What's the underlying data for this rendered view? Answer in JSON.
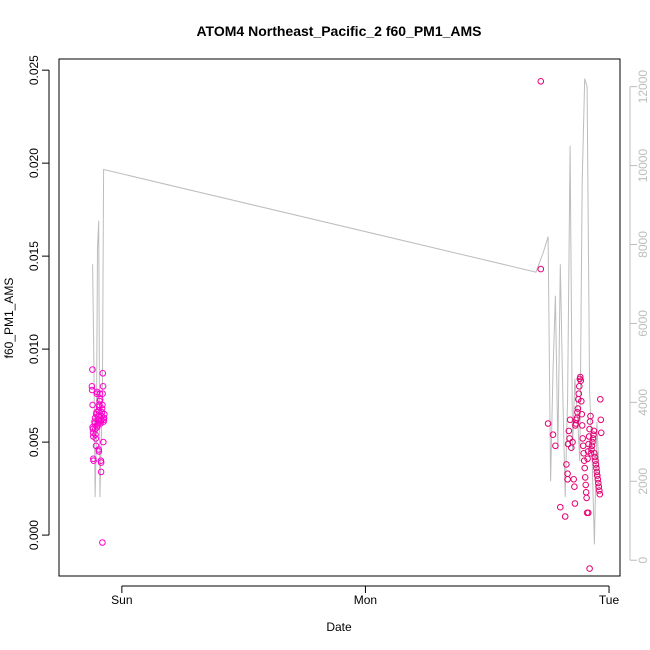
{
  "chart_data": {
    "type": "scatter",
    "title": "ATOM4 Northeast_Pacific_2 f60_PM1_AMS",
    "xlabel": "Date",
    "ylabel": "f60_PM1_AMS",
    "x_ticks": [
      {
        "label": "Sun",
        "value": 0
      },
      {
        "label": "Mon",
        "value": 1
      },
      {
        "label": "Tue",
        "value": 2
      }
    ],
    "xlim": [
      -0.258,
      2.045
    ],
    "ylim": [
      -0.0022,
      0.0256
    ],
    "y_ticks": [
      0.0,
      0.005,
      0.01,
      0.015,
      0.02,
      0.025
    ],
    "y_tick_labels": [
      "0.000",
      "0.005",
      "0.010",
      "0.015",
      "0.020",
      "0.025"
    ],
    "y2_ticks": [
      0,
      2000,
      4000,
      6000,
      8000,
      10000,
      12000
    ],
    "y2_tick_labels": [
      "0",
      "2000",
      "4000",
      "6000",
      "8000",
      "10000",
      "12000"
    ],
    "y2lim": [
      -400,
      12700
    ],
    "grid": false,
    "colors": {
      "points": "#ff00cc",
      "points_alt": "#e60073",
      "line": "#bdbdbd"
    },
    "series": [
      {
        "role": "f60_PM1_AMS points",
        "points": [
          [
            -0.123,
            0.008
          ],
          [
            -0.122,
            0.0078
          ],
          [
            -0.121,
            0.0089
          ],
          [
            -0.12,
            0.007
          ],
          [
            -0.12,
            0.0058
          ],
          [
            -0.119,
            0.0057
          ],
          [
            -0.118,
            0.0055
          ],
          [
            -0.117,
            0.0053
          ],
          [
            -0.117,
            0.0041
          ],
          [
            -0.116,
            0.004
          ],
          [
            -0.112,
            0.0061
          ],
          [
            -0.111,
            0.006
          ],
          [
            -0.11,
            0.0063
          ],
          [
            -0.109,
            0.0057
          ],
          [
            -0.108,
            0.0054
          ],
          [
            -0.107,
            0.0052
          ],
          [
            -0.106,
            0.0048
          ],
          [
            -0.105,
            0.0065
          ],
          [
            -0.104,
            0.0066
          ],
          [
            -0.103,
            0.0076
          ],
          [
            -0.102,
            0.0077
          ],
          [
            -0.101,
            0.0058
          ],
          [
            -0.1,
            0.0059
          ],
          [
            -0.099,
            0.006
          ],
          [
            -0.098,
            0.0062
          ],
          [
            -0.097,
            0.0064
          ],
          [
            -0.096,
            0.0067
          ],
          [
            -0.095,
            0.0046
          ],
          [
            -0.094,
            0.0045
          ],
          [
            -0.093,
            0.0069
          ],
          [
            -0.092,
            0.007
          ],
          [
            -0.091,
            0.0072
          ],
          [
            -0.09,
            0.0076
          ],
          [
            -0.089,
            0.0073
          ],
          [
            -0.088,
            0.006
          ],
          [
            -0.087,
            0.0061
          ],
          [
            -0.086,
            0.004
          ],
          [
            -0.085,
            0.0039
          ],
          [
            -0.085,
            0.0034
          ],
          [
            -0.084,
            0.0062
          ],
          [
            -0.083,
            0.0064
          ],
          [
            -0.082,
            0.0066
          ],
          [
            -0.081,
            0.0068
          ],
          [
            -0.08,
            0.007
          ],
          [
            -0.079,
            0.0076
          ],
          [
            -0.078,
            0.0087
          ],
          [
            -0.077,
            0.008
          ],
          [
            -0.076,
            0.005
          ],
          [
            -0.075,
            0.0061
          ],
          [
            -0.074,
            0.0062
          ],
          [
            -0.073,
            0.0063
          ],
          [
            -0.072,
            0.0065
          ],
          [
            -0.08,
            -0.0004
          ],
          [
            1.72,
            0.0244
          ],
          [
            1.72,
            0.0143
          ],
          [
            1.75,
            0.006
          ],
          [
            1.77,
            0.0054
          ],
          [
            1.78,
            0.0048
          ],
          [
            1.8,
            0.0015
          ],
          [
            1.82,
            0.001
          ],
          [
            1.825,
            0.0038
          ],
          [
            1.83,
            0.0033
          ],
          [
            1.83,
            0.003
          ],
          [
            1.832,
            0.0049
          ],
          [
            1.835,
            0.0056
          ],
          [
            1.838,
            0.0052
          ],
          [
            1.84,
            0.0062
          ],
          [
            1.845,
            0.0047
          ],
          [
            1.85,
            0.005
          ],
          [
            1.855,
            0.003
          ],
          [
            1.858,
            0.0026
          ],
          [
            1.86,
            0.0017
          ],
          [
            1.862,
            0.0059
          ],
          [
            1.864,
            0.006
          ],
          [
            1.866,
            0.0062
          ],
          [
            1.868,
            0.0063
          ],
          [
            1.87,
            0.0066
          ],
          [
            1.872,
            0.0068
          ],
          [
            1.874,
            0.0073
          ],
          [
            1.876,
            0.0076
          ],
          [
            1.878,
            0.008
          ],
          [
            1.88,
            0.0084
          ],
          [
            1.882,
            0.0085
          ],
          [
            1.884,
            0.0083
          ],
          [
            1.886,
            0.0072
          ],
          [
            1.888,
            0.0065
          ],
          [
            1.89,
            0.0059
          ],
          [
            1.892,
            0.0052
          ],
          [
            1.894,
            0.0048
          ],
          [
            1.896,
            0.0044
          ],
          [
            1.898,
            0.004
          ],
          [
            1.9,
            0.0036
          ],
          [
            1.902,
            0.0031
          ],
          [
            1.904,
            0.0027
          ],
          [
            1.906,
            0.0023
          ],
          [
            1.908,
            0.002
          ],
          [
            1.91,
            0.0012
          ],
          [
            1.912,
            0.0041
          ],
          [
            1.914,
            0.0045
          ],
          [
            1.916,
            0.0049
          ],
          [
            1.918,
            0.0053
          ],
          [
            1.92,
            0.0057
          ],
          [
            1.922,
            0.0061
          ],
          [
            1.924,
            0.0064
          ],
          [
            1.926,
            0.0044
          ],
          [
            1.928,
            0.0046
          ],
          [
            1.93,
            0.0048
          ],
          [
            1.932,
            0.005
          ],
          [
            1.934,
            0.0052
          ],
          [
            1.936,
            0.0054
          ],
          [
            1.938,
            0.0056
          ],
          [
            1.94,
            0.0044
          ],
          [
            1.942,
            0.0042
          ],
          [
            1.944,
            0.004
          ],
          [
            1.946,
            0.0038
          ],
          [
            1.948,
            0.0036
          ],
          [
            1.95,
            0.0034
          ],
          [
            1.952,
            0.0032
          ],
          [
            1.954,
            0.003
          ],
          [
            1.956,
            0.0028
          ],
          [
            1.958,
            0.0026
          ],
          [
            1.96,
            0.0024
          ],
          [
            1.962,
            0.0022
          ],
          [
            1.964,
            0.0073
          ],
          [
            1.966,
            0.0062
          ],
          [
            1.968,
            0.0055
          ],
          [
            1.92,
            -0.0018
          ],
          [
            1.915,
            0.0012
          ]
        ]
      },
      {
        "role": "secondary line (right axis)",
        "points": [
          [
            -0.12,
            7500
          ],
          [
            -0.115,
            5200
          ],
          [
            -0.11,
            1600
          ],
          [
            -0.105,
            3000
          ],
          [
            -0.1,
            7900
          ],
          [
            -0.095,
            8600
          ],
          [
            -0.09,
            1600
          ],
          [
            -0.085,
            2800
          ],
          [
            -0.08,
            4200
          ],
          [
            -0.075,
            9900
          ],
          [
            1.7,
            7300
          ],
          [
            1.73,
            7800
          ],
          [
            1.75,
            8200
          ],
          [
            1.76,
            2000
          ],
          [
            1.77,
            4800
          ],
          [
            1.78,
            6700
          ],
          [
            1.79,
            2800
          ],
          [
            1.8,
            7500
          ],
          [
            1.81,
            4200
          ],
          [
            1.82,
            1600
          ],
          [
            1.83,
            4100
          ],
          [
            1.84,
            10500
          ],
          [
            1.85,
            2800
          ],
          [
            1.86,
            4600
          ],
          [
            1.87,
            3700
          ],
          [
            1.88,
            2500
          ],
          [
            1.89,
            9600
          ],
          [
            1.9,
            12200
          ],
          [
            1.91,
            12000
          ],
          [
            1.92,
            4300
          ],
          [
            1.93,
            2700
          ],
          [
            1.94,
            400
          ],
          [
            1.95,
            3500
          ],
          [
            1.96,
            2100
          ]
        ]
      }
    ]
  }
}
